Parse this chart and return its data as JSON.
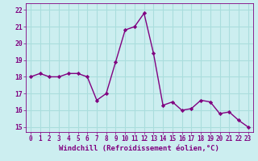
{
  "x": [
    0,
    1,
    2,
    3,
    4,
    5,
    6,
    7,
    8,
    9,
    10,
    11,
    12,
    13,
    14,
    15,
    16,
    17,
    18,
    19,
    20,
    21,
    22,
    23
  ],
  "y": [
    18.0,
    18.2,
    18.0,
    18.0,
    18.2,
    18.2,
    18.0,
    16.6,
    17.0,
    18.9,
    20.8,
    21.0,
    21.8,
    19.4,
    16.3,
    16.5,
    16.0,
    16.1,
    16.6,
    16.5,
    15.8,
    15.9,
    15.4,
    15.0
  ],
  "line_color": "#800080",
  "marker": "D",
  "marker_size": 2.2,
  "bg_color": "#cceef0",
  "grid_color": "#aadddd",
  "xlabel": "Windchill (Refroidissement éolien,°C)",
  "xlabel_fontsize": 6.5,
  "xtick_fontsize": 5.5,
  "ytick_fontsize": 5.8,
  "ylim": [
    14.7,
    22.4
  ],
  "xlim": [
    -0.5,
    23.5
  ],
  "yticks": [
    15,
    16,
    17,
    18,
    19,
    20,
    21,
    22
  ],
  "xticks": [
    0,
    1,
    2,
    3,
    4,
    5,
    6,
    7,
    8,
    9,
    10,
    11,
    12,
    13,
    14,
    15,
    16,
    17,
    18,
    19,
    20,
    21,
    22,
    23
  ],
  "line_width": 1.0
}
